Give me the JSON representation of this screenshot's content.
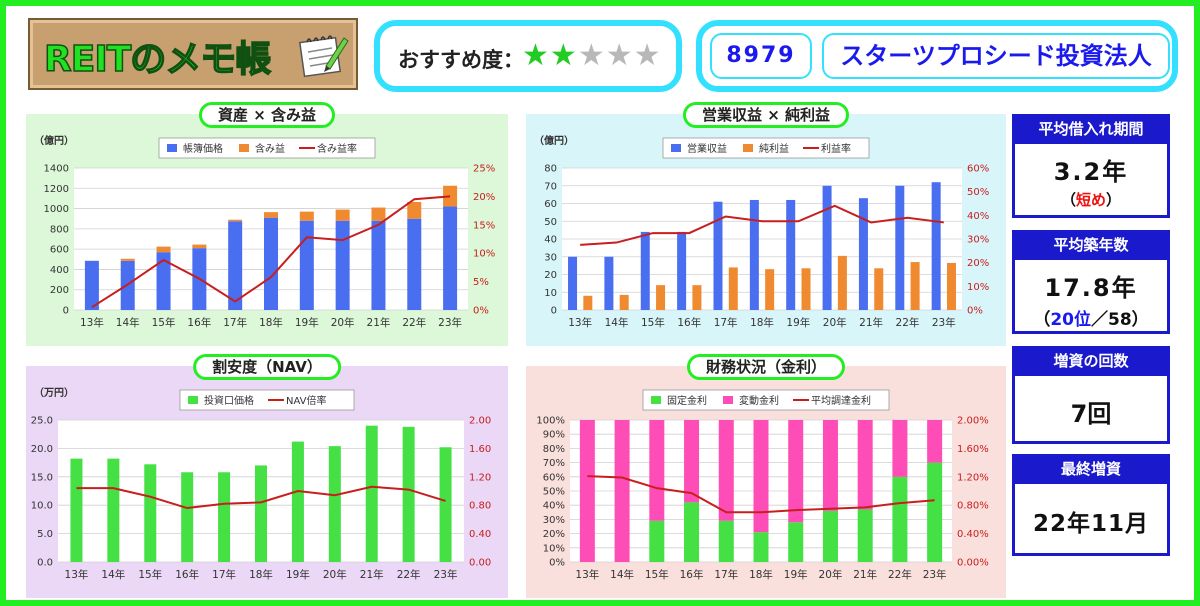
{
  "header": {
    "title": "REITのメモ帳",
    "recommend_label": "おすすめ度：",
    "rating": 2,
    "rating_max": 5,
    "code": "8979",
    "fund_name": "スターツプロシード投資法人"
  },
  "stats": {
    "avg_loan_period": {
      "label": "平均借入れ期間",
      "value": "3.2年",
      "note": "（短め）"
    },
    "avg_building_age": {
      "label": "平均築年数",
      "value": "17.8年",
      "note_open": "（",
      "rank": "20位",
      "note_rest": "／58）"
    },
    "capital_increase_count": {
      "label": "増資の回数",
      "value": "7回"
    },
    "last_increase": {
      "label": "最終増資",
      "value": "22年11月"
    }
  },
  "colors": {
    "blue_bar": "#4a6ef0",
    "orange_bar": "#f08a30",
    "line_red": "#c81e1e",
    "green_bar": "#44e044",
    "pink_bar": "#ff4db8",
    "panel1_bg": "#dcf8d8",
    "panel2_bg": "#d8f6fa",
    "panel3_bg": "#ead8f6",
    "panel4_bg": "#fae0dc"
  },
  "chart_data": [
    {
      "type": "bar",
      "title": "資産 × 含み益",
      "unit": "（億円）",
      "categories": [
        "13年",
        "14年",
        "15年",
        "16年",
        "17年",
        "18年",
        "19年",
        "20年",
        "21年",
        "22年",
        "23年"
      ],
      "stacked": true,
      "series": [
        {
          "name": "帳簿価格",
          "values": [
            485,
            485,
            570,
            610,
            875,
            910,
            880,
            880,
            880,
            900,
            1020
          ]
        },
        {
          "name": "含み益",
          "values": [
            0,
            20,
            55,
            35,
            15,
            55,
            90,
            110,
            130,
            165,
            205
          ]
        }
      ],
      "line_series": {
        "name": "含み益率",
        "values": [
          0.5,
          4.5,
          8.8,
          5.5,
          1.5,
          5.8,
          12.8,
          12.3,
          15.0,
          19.5,
          20.0
        ]
      },
      "ylim": [
        0,
        1400
      ],
      "yticks": [
        0,
        200,
        400,
        600,
        800,
        1000,
        1200,
        1400
      ],
      "y2lim": [
        0,
        25
      ],
      "y2ticks": [
        "0%",
        "5%",
        "10%",
        "15%",
        "20%",
        "25%"
      ],
      "legend": "top"
    },
    {
      "type": "bar",
      "title": "営業収益 × 純利益",
      "unit": "（億円）",
      "categories": [
        "13年",
        "14年",
        "15年",
        "16年",
        "17年",
        "18年",
        "19年",
        "20年",
        "21年",
        "22年",
        "23年"
      ],
      "stacked": false,
      "series": [
        {
          "name": "営業収益",
          "values": [
            30,
            30,
            44,
            44,
            61,
            62,
            62,
            70,
            63,
            70,
            72
          ]
        },
        {
          "name": "純利益",
          "values": [
            8,
            8.5,
            14,
            14,
            24,
            23,
            23.5,
            30.5,
            23.5,
            27,
            26.5
          ]
        }
      ],
      "line_series": {
        "name": "利益率",
        "values": [
          27.5,
          28.5,
          32.5,
          32.5,
          39.5,
          37.5,
          37.5,
          44,
          37,
          39,
          37
        ]
      },
      "ylim": [
        0,
        80
      ],
      "yticks": [
        0,
        10,
        20,
        30,
        40,
        50,
        60,
        70,
        80
      ],
      "y2lim": [
        0,
        60
      ],
      "y2ticks": [
        "0%",
        "10%",
        "20%",
        "30%",
        "40%",
        "50%",
        "60%"
      ],
      "legend": "top"
    },
    {
      "type": "bar",
      "title": "割安度（NAV）",
      "unit": "（万円）",
      "categories": [
        "13年",
        "14年",
        "15年",
        "16年",
        "17年",
        "18年",
        "19年",
        "20年",
        "21年",
        "22年",
        "23年"
      ],
      "stacked": false,
      "series": [
        {
          "name": "投資口価格",
          "values": [
            18.2,
            18.2,
            17.2,
            15.8,
            15.8,
            17.0,
            21.2,
            20.4,
            24.0,
            23.8,
            20.2
          ]
        }
      ],
      "line_series": {
        "name": "NAV倍率",
        "values": [
          1.04,
          1.04,
          0.92,
          0.76,
          0.82,
          0.84,
          1.0,
          0.94,
          1.06,
          1.02,
          0.86
        ]
      },
      "ylim": [
        0,
        25
      ],
      "yticks": [
        "0.0",
        "5.0",
        "10.0",
        "15.0",
        "20.0",
        "25.0"
      ],
      "y2lim": [
        0,
        2
      ],
      "y2ticks": [
        "0.00",
        "0.40",
        "0.80",
        "1.20",
        "1.60",
        "2.00"
      ],
      "legend": "top"
    },
    {
      "type": "bar",
      "title": "財務状況（金利）",
      "categories": [
        "13年",
        "14年",
        "15年",
        "16年",
        "17年",
        "18年",
        "19年",
        "20年",
        "21年",
        "22年",
        "23年"
      ],
      "stacked": true,
      "series": [
        {
          "name": "固定金利",
          "values": [
            0,
            0,
            29,
            42,
            29,
            21,
            28,
            36,
            37,
            60,
            70
          ]
        },
        {
          "name": "変動金利",
          "values": [
            100,
            100,
            71,
            58,
            71,
            79,
            72,
            64,
            63,
            40,
            30
          ]
        }
      ],
      "line_series": {
        "name": "平均調達金利",
        "values": [
          1.21,
          1.19,
          1.04,
          0.97,
          0.7,
          0.7,
          0.73,
          0.75,
          0.77,
          0.83,
          0.87
        ]
      },
      "ylim": [
        0,
        100
      ],
      "yticks": [
        "0%",
        "10%",
        "20%",
        "30%",
        "40%",
        "50%",
        "60%",
        "70%",
        "80%",
        "90%",
        "100%"
      ],
      "y2lim": [
        0,
        2
      ],
      "y2ticks": [
        "0.00%",
        "0.40%",
        "0.80%",
        "1.20%",
        "1.60%",
        "2.00%"
      ],
      "legend": "top"
    }
  ]
}
